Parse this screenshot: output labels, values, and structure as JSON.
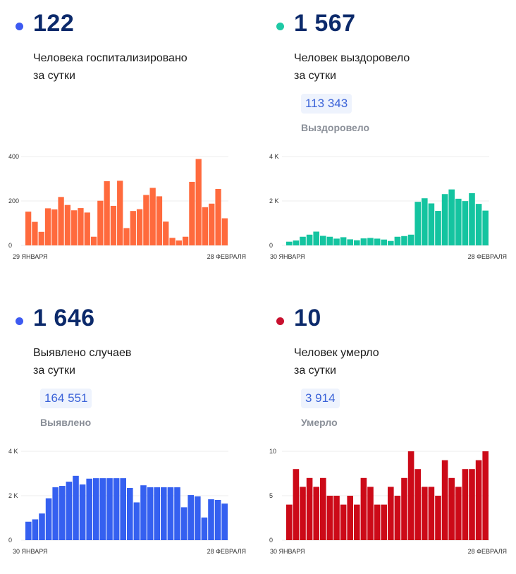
{
  "cards": [
    {
      "value": "122",
      "subtitle_line1": "Человека госпитализировано",
      "subtitle_line2": "за сутки",
      "dot_color": "#3d5af1",
      "bar_color": "#ff6a3d",
      "chart_data": {
        "type": "bar",
        "x_start_label": "29 ЯНВАРЯ",
        "x_end_label": "28 ФЕВРАЛЯ",
        "ylim": [
          0,
          400
        ],
        "yticks": [
          0,
          200,
          400
        ],
        "ytick_labels": [
          "0",
          "200",
          "400"
        ],
        "grid": true,
        "values": [
          152,
          106,
          61,
          167,
          162,
          218,
          182,
          158,
          168,
          148,
          39,
          201,
          289,
          178,
          291,
          78,
          155,
          163,
          227,
          259,
          221,
          107,
          34,
          22,
          39,
          286,
          389,
          172,
          188,
          254,
          122
        ]
      }
    },
    {
      "value": "1 567",
      "subtitle_line1": "Человек выздоровело",
      "subtitle_line2": "за сутки",
      "total": "113 343",
      "total_label": "Выздоровело",
      "dot_color": "#1ec9a5",
      "bar_color": "#14c4a0",
      "chart_data": {
        "type": "bar",
        "x_start_label": "30 ЯНВАРЯ",
        "x_end_label": "28 ФЕВРАЛЯ",
        "ylim": [
          0,
          4000
        ],
        "yticks": [
          0,
          2000,
          4000
        ],
        "ytick_labels": [
          "0",
          "2 K",
          "4 K"
        ],
        "grid": true,
        "values": [
          168,
          220,
          389,
          483,
          620,
          430,
          389,
          305,
          368,
          273,
          231,
          315,
          336,
          305,
          263,
          200,
          389,
          420,
          483,
          1963,
          2121,
          1890,
          1554,
          2310,
          2520,
          2100,
          1995,
          2352,
          1869,
          1567
        ]
      }
    },
    {
      "value": "1 646",
      "subtitle_line1": "Выявлено случаев",
      "subtitle_line2": "за сутки",
      "total": "164 551",
      "total_label": "Выявлено",
      "dot_color": "#3d5af1",
      "bar_color": "#3560f0",
      "chart_data": {
        "type": "bar",
        "x_start_label": "30 ЯНВАРЯ",
        "x_end_label": "28 ФЕВРАЛЯ",
        "ylim": [
          0,
          4000
        ],
        "yticks": [
          0,
          2000,
          4000
        ],
        "ytick_labels": [
          "0",
          "2 K",
          "4 K"
        ],
        "grid": true,
        "values": [
          832,
          937,
          1200,
          1885,
          2380,
          2443,
          2632,
          2895,
          2506,
          2769,
          2790,
          2790,
          2790,
          2790,
          2790,
          2350,
          1700,
          2470,
          2380,
          2380,
          2380,
          2380,
          2380,
          1480,
          2030,
          1970,
          1020,
          1840,
          1810,
          1646
        ]
      }
    },
    {
      "value": "10",
      "subtitle_line1": "Человек умерло",
      "subtitle_line2": "за сутки",
      "total": "3 914",
      "total_label": "Умерло",
      "dot_color": "#c8102e",
      "bar_color": "#cc0a18",
      "chart_data": {
        "type": "bar",
        "x_start_label": "30 ЯНВАРЯ",
        "x_end_label": "28 ФЕВРАЛЯ",
        "ylim": [
          0,
          10
        ],
        "yticks": [
          0,
          5,
          10
        ],
        "ytick_labels": [
          "0",
          "5",
          "10"
        ],
        "grid": true,
        "values": [
          4,
          8,
          6,
          7,
          6,
          7,
          5,
          5,
          4,
          5,
          4,
          7,
          6,
          4,
          4,
          6,
          5,
          7,
          10,
          8,
          6,
          6,
          5,
          9,
          7,
          6,
          8,
          8,
          9,
          10
        ]
      }
    }
  ]
}
